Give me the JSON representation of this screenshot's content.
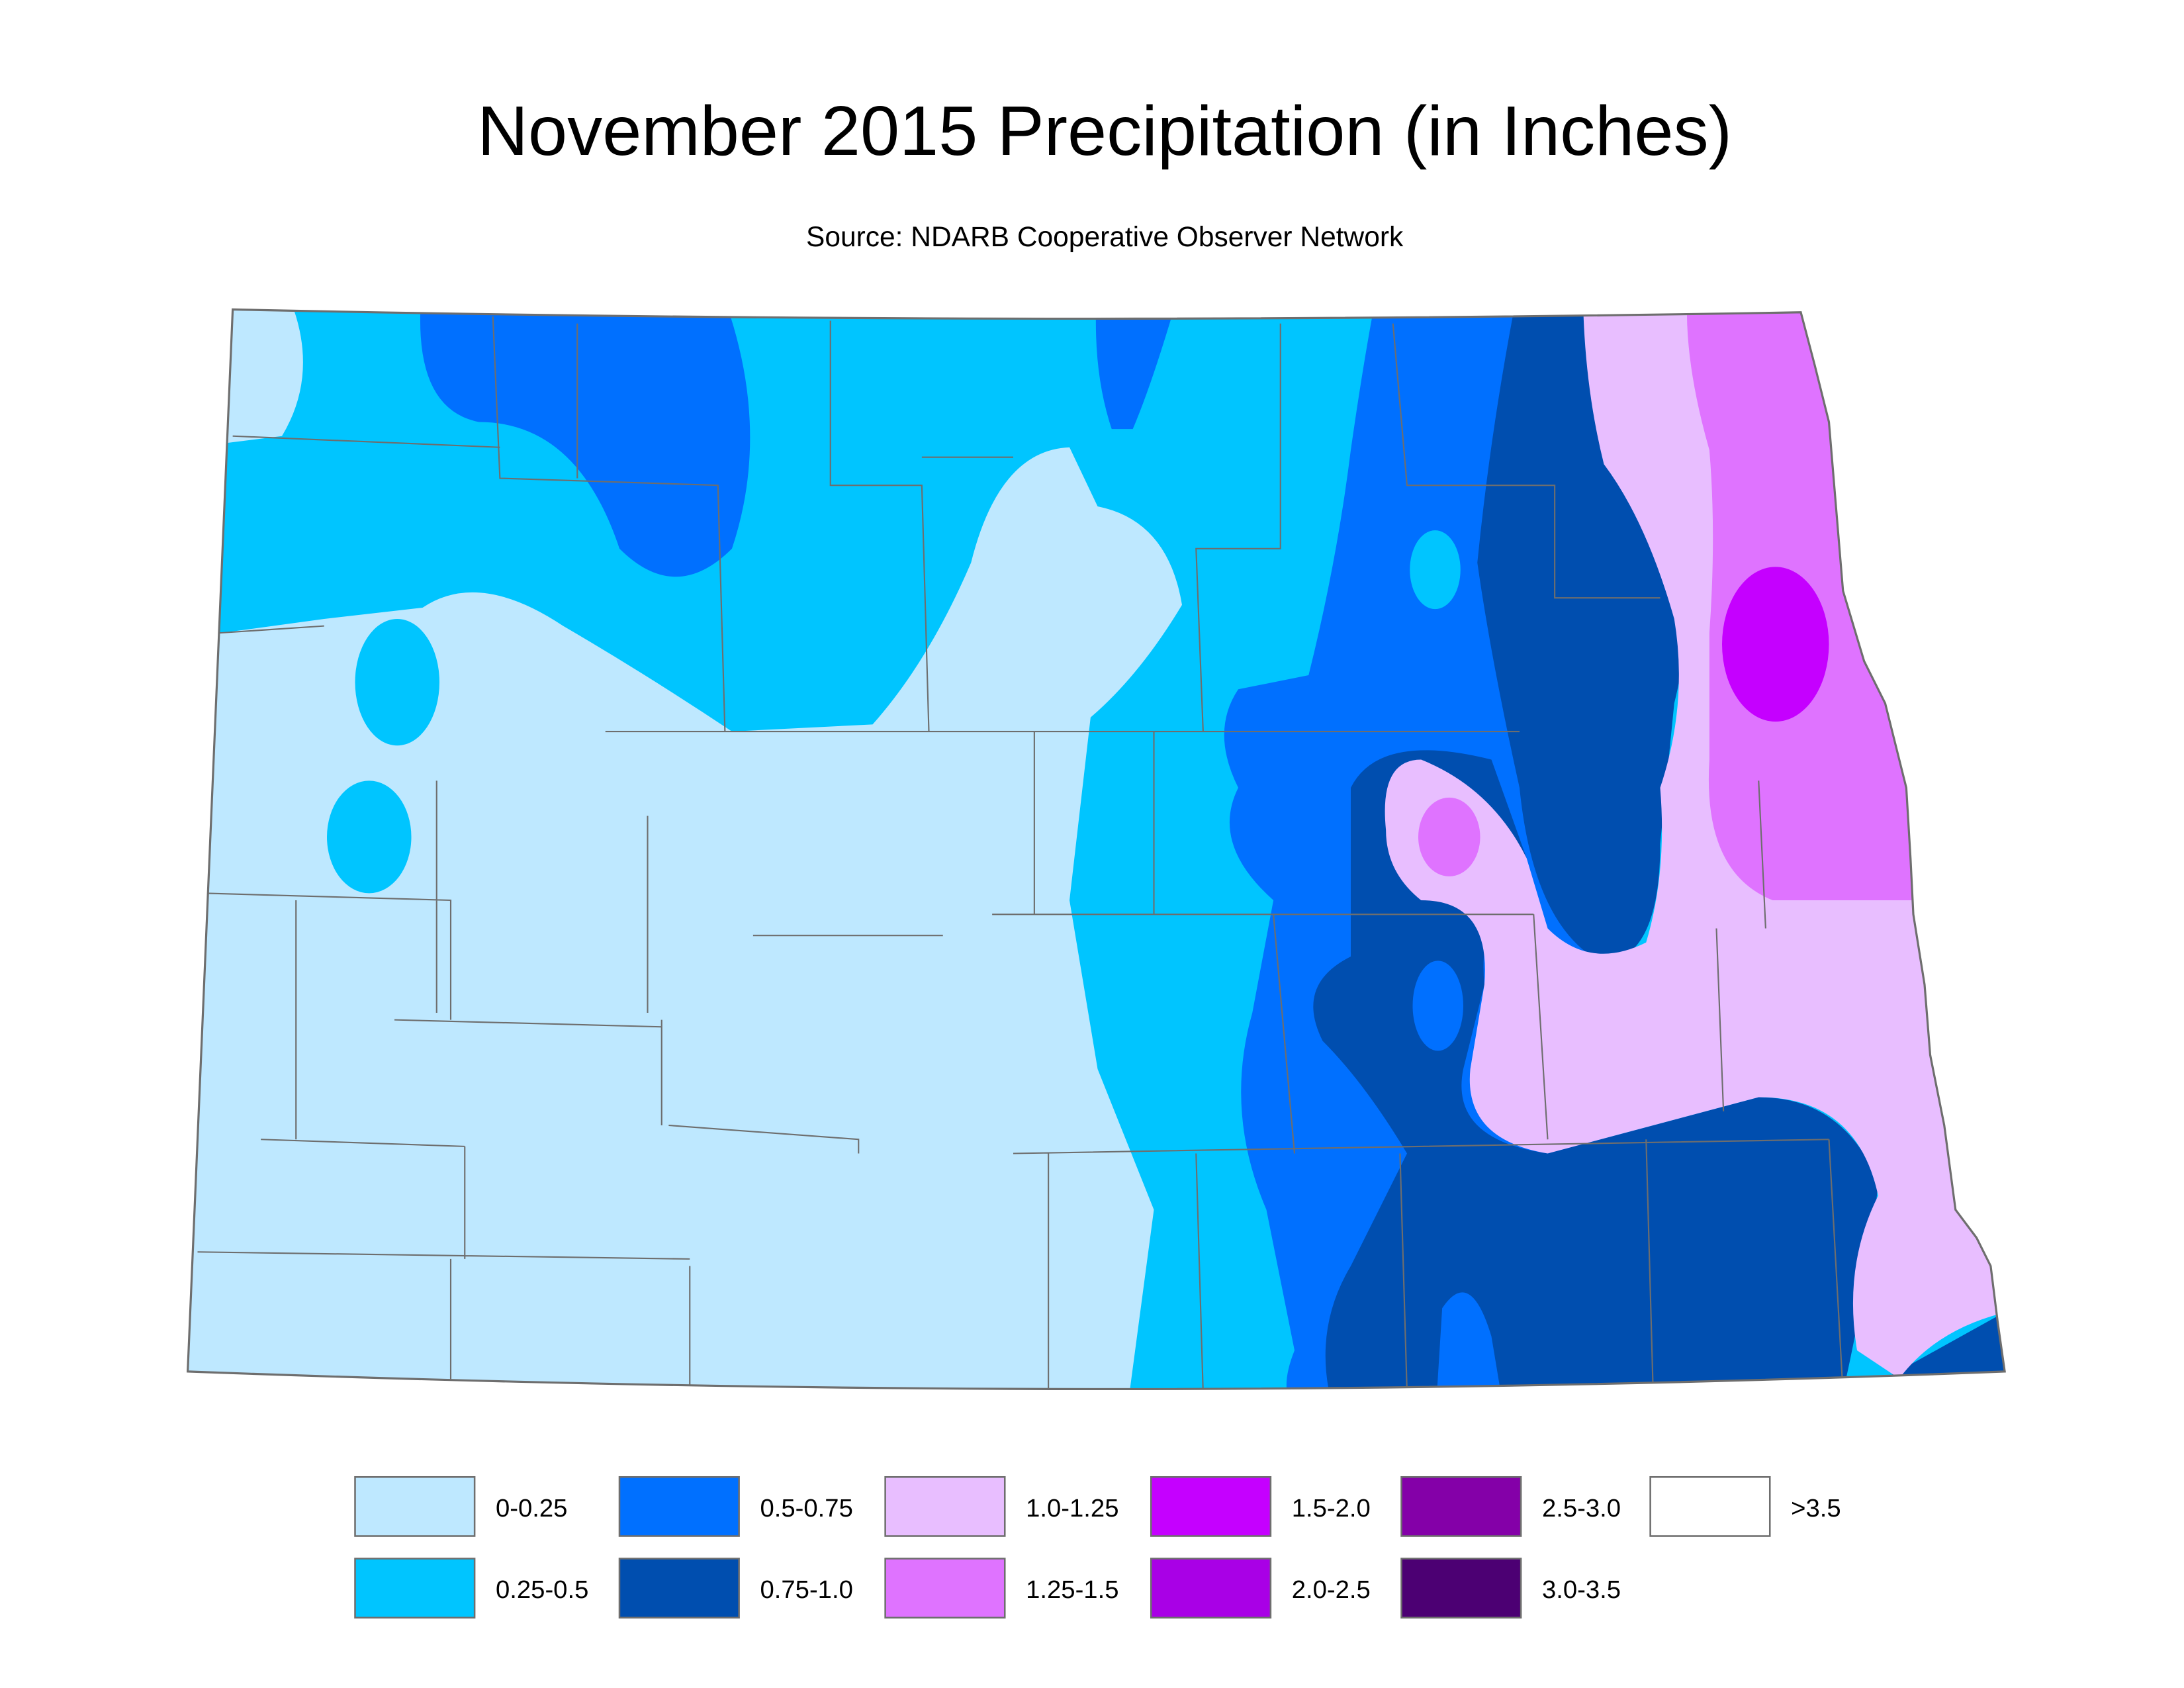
{
  "header": {
    "title": "November 2015 Precipitation (in Inches)",
    "subtitle": "Source: NDARB Cooperative Observer Network"
  },
  "legend": {
    "items": [
      {
        "label": "0-0.25",
        "color": "#bee8ff"
      },
      {
        "label": "0.25-0.5",
        "color": "#00c5ff"
      },
      {
        "label": "0.5-0.75",
        "color": "#0070ff"
      },
      {
        "label": "0.75-1.0",
        "color": "#004eaf"
      },
      {
        "label": "1.0-1.25",
        "color": "#e8beff"
      },
      {
        "label": "1.25-1.5",
        "color": "#df73ff"
      },
      {
        "label": "1.5-2.0",
        "color": "#c500ff"
      },
      {
        "label": "2.0-2.5",
        "color": "#a900e6"
      },
      {
        "label": "2.5-3.0",
        "color": "#8400a8"
      },
      {
        "label": "3.0-3.5",
        "color": "#4c0073"
      },
      {
        "label": ">3.5",
        "color": "#ffffff"
      }
    ]
  }
}
